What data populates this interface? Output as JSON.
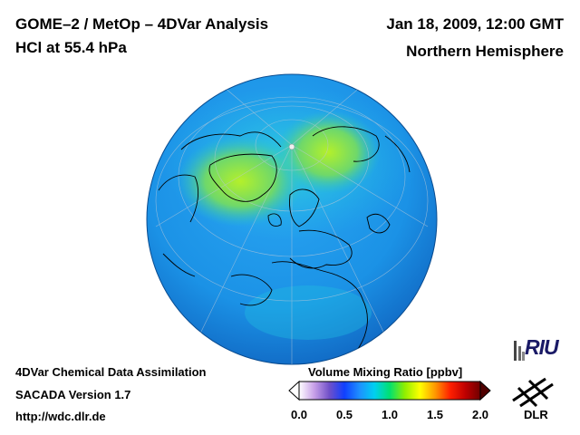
{
  "header": {
    "title_line1": "GOME–2 / MetOp – 4DVar Analysis",
    "title_line2": "HCl at 55.4 hPa",
    "date": "Jan 18, 2009, 12:00 GMT",
    "region": "Northern Hemisphere"
  },
  "footer": {
    "line1": "4DVar Chemical Data Assimilation",
    "line2": "SACADA Version 1.7",
    "line3": "http://wdc.dlr.de"
  },
  "colorbar": {
    "title": "Volume Mixing Ratio [ppbv]",
    "ticks": [
      "0.0",
      "0.5",
      "1.0",
      "1.5",
      "2.0"
    ],
    "range": [
      0.0,
      2.0
    ],
    "stops": [
      "#ffffff",
      "#c8a0e8",
      "#7050c8",
      "#1040ff",
      "#1e90ff",
      "#00d0f0",
      "#00e070",
      "#90ee00",
      "#ffff00",
      "#ff9900",
      "#ff2000",
      "#c00000",
      "#700000"
    ]
  },
  "map": {
    "projection": "orthographic",
    "background_color": "#1e9aea",
    "high_region_color": "#9ee62a"
  },
  "logos": {
    "riu": "RIU",
    "dlr": "DLR"
  }
}
